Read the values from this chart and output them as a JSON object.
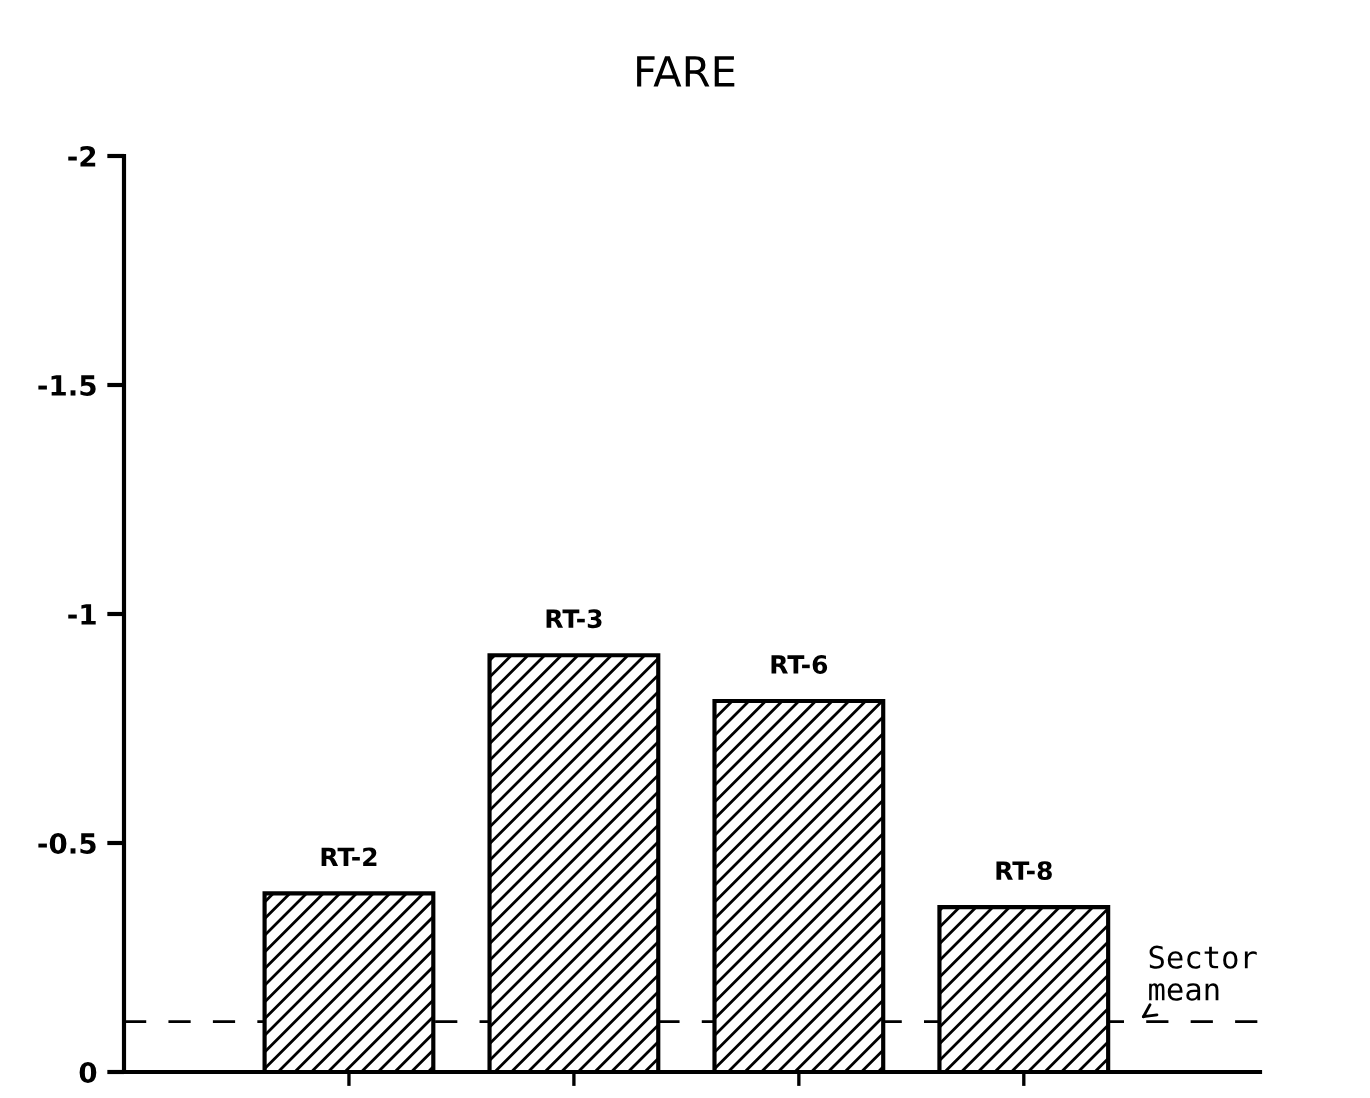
{
  "chart_data": {
    "type": "bar",
    "title": "FARE",
    "categories": [
      "RT-2",
      "RT-3",
      "RT-6",
      "RT-8"
    ],
    "values": [
      -0.39,
      -0.91,
      -0.81,
      -0.36
    ],
    "color": "#000000",
    "ylim": [
      0,
      -2
    ],
    "yticks": [
      0,
      -0.5,
      -1,
      -1.5,
      -2
    ],
    "tick_labels": "y",
    "ref_lines": [
      {
        "axis": "y",
        "value": -0.11,
        "label": "Sector mean",
        "line_style": "dashed"
      }
    ],
    "grid": false,
    "legend": false
  }
}
